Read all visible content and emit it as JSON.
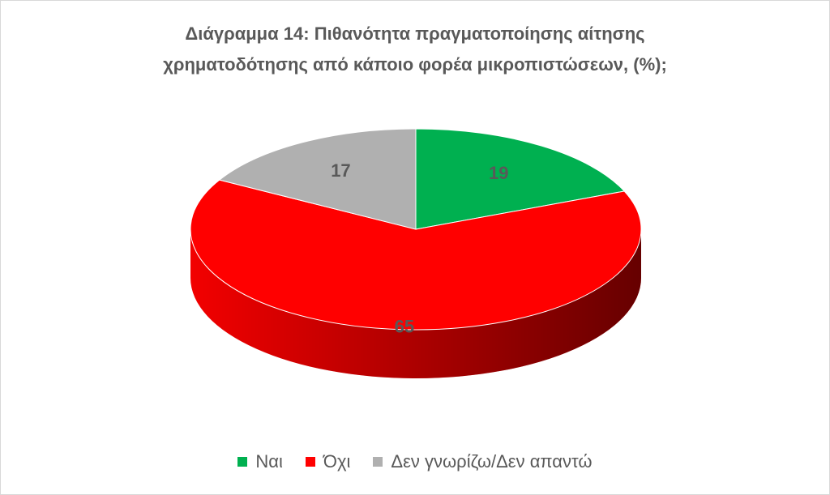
{
  "chart_data": {
    "type": "pie3d",
    "title": [
      "Διάγραμμα 14: Πιθανότητα πραγματοποίησης αίτησης",
      "χρηματοδότησης από κάποιο φορέα μικροπιστώσεων, (%);"
    ],
    "categories": [
      "Ναι",
      "Όχι",
      "Δεν γνωρίζω/Δεν απαντώ"
    ],
    "values": [
      19,
      65,
      17
    ],
    "colors": [
      "#00b050",
      "#ff0000",
      "#b0b0b0"
    ],
    "legend": "bottom"
  }
}
